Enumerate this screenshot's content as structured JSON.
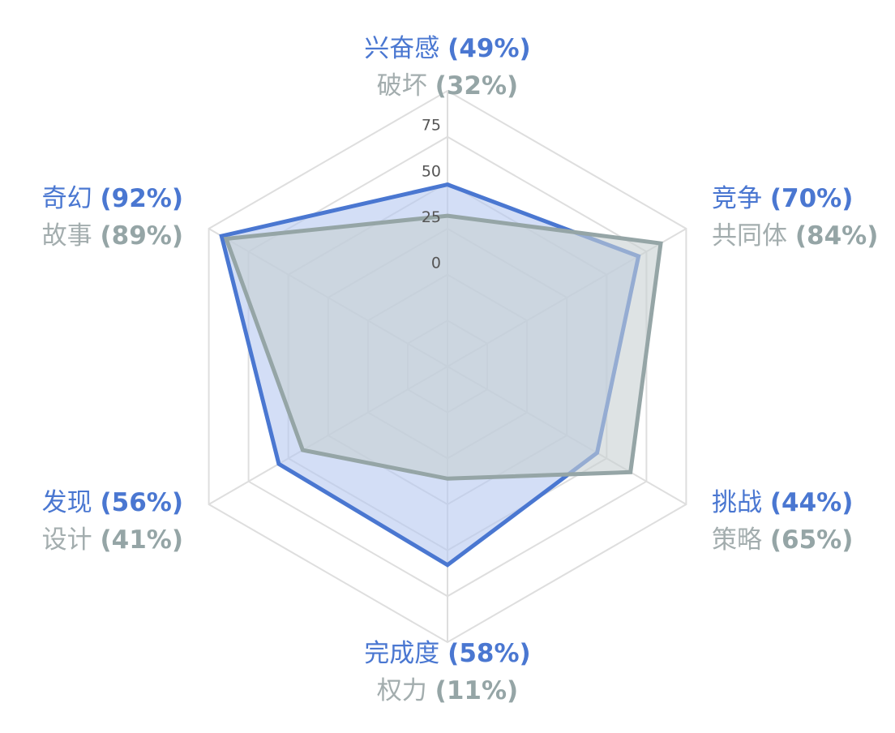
{
  "chart_data": {
    "type": "radar",
    "axes": [
      {
        "primary": {
          "name": "兴奋感",
          "pct_label": "(49%)"
        },
        "secondary": {
          "name": "破坏",
          "pct_label": "(32%)"
        }
      },
      {
        "primary": {
          "name": "竞争",
          "pct_label": "(70%)"
        },
        "secondary": {
          "name": "共同体",
          "pct_label": "(84%)"
        }
      },
      {
        "primary": {
          "name": "挑战",
          "pct_label": "(44%)"
        },
        "secondary": {
          "name": "策略",
          "pct_label": "(65%)"
        }
      },
      {
        "primary": {
          "name": "完成度",
          "pct_label": "(58%)"
        },
        "secondary": {
          "name": "权力",
          "pct_label": "(11%)"
        }
      },
      {
        "primary": {
          "name": "发现",
          "pct_label": "(56%)"
        },
        "secondary": {
          "name": "设计",
          "pct_label": "(41%)"
        }
      },
      {
        "primary": {
          "name": "奇幻",
          "pct_label": "(92%)"
        },
        "secondary": {
          "name": "故事",
          "pct_label": "(89%)"
        }
      }
    ],
    "series": [
      {
        "values": [
          49,
          70,
          44,
          58,
          56,
          92
        ],
        "color": "#4a77d1",
        "fill": "#b5c8f0"
      },
      {
        "values": [
          32,
          84,
          65,
          11,
          41,
          89
        ],
        "color": "#95a5a6",
        "fill": "#c8d0d2"
      }
    ],
    "scale": {
      "min": -50,
      "max": 100,
      "ticks": [
        0,
        25,
        50,
        75
      ]
    },
    "grid": true
  }
}
